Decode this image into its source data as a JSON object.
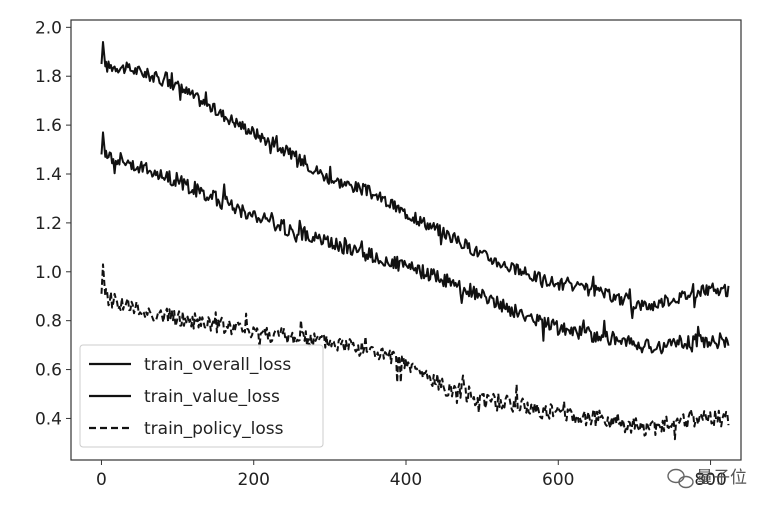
{
  "chart_data": {
    "type": "line",
    "title": "",
    "xlabel": "",
    "ylabel": "",
    "xlim": [
      -40,
      840
    ],
    "ylim": [
      0.23,
      2.03
    ],
    "xticks": [
      0,
      200,
      400,
      600,
      800
    ],
    "xtick_labels": [
      "0",
      "200",
      "400",
      "600",
      "800"
    ],
    "yticks": [
      0.4,
      0.6,
      0.8,
      1.0,
      1.2,
      1.4,
      1.6,
      1.8,
      2.0
    ],
    "ytick_labels": [
      "0.4",
      "0.6",
      "0.8",
      "1.0",
      "1.2",
      "1.4",
      "1.6",
      "1.8",
      "2.0"
    ],
    "grid": false,
    "legend_position": "lower-left",
    "colors": {
      "line": "#111111",
      "axis": "#333333",
      "legend_border": "#cccccc"
    },
    "series": [
      {
        "name": "train_overall_loss",
        "style": "solid",
        "noise": 0.025,
        "x": [
          0,
          2,
          5,
          20,
          50,
          100,
          150,
          200,
          250,
          300,
          350,
          400,
          450,
          500,
          550,
          600,
          650,
          700,
          720,
          750,
          800,
          825
        ],
        "y": [
          1.85,
          1.94,
          1.84,
          1.84,
          1.82,
          1.76,
          1.66,
          1.57,
          1.48,
          1.38,
          1.33,
          1.24,
          1.16,
          1.07,
          1.0,
          0.95,
          0.92,
          0.87,
          0.86,
          0.89,
          0.93,
          0.92
        ]
      },
      {
        "name": "train_value_loss",
        "style": "solid",
        "noise": 0.03,
        "x": [
          0,
          2,
          5,
          20,
          50,
          100,
          150,
          200,
          250,
          300,
          350,
          400,
          450,
          500,
          550,
          600,
          650,
          700,
          720,
          750,
          800,
          825
        ],
        "y": [
          1.48,
          1.57,
          1.47,
          1.47,
          1.43,
          1.37,
          1.3,
          1.23,
          1.17,
          1.12,
          1.07,
          1.02,
          0.97,
          0.9,
          0.83,
          0.77,
          0.74,
          0.71,
          0.69,
          0.71,
          0.72,
          0.7
        ]
      },
      {
        "name": "train_policy_loss",
        "style": "dashed",
        "noise": 0.035,
        "x": [
          0,
          2,
          5,
          20,
          50,
          100,
          150,
          200,
          250,
          300,
          350,
          400,
          450,
          500,
          550,
          600,
          650,
          700,
          720,
          750,
          800,
          825
        ],
        "y": [
          0.91,
          1.03,
          0.9,
          0.88,
          0.84,
          0.81,
          0.78,
          0.76,
          0.73,
          0.71,
          0.68,
          0.62,
          0.53,
          0.48,
          0.45,
          0.42,
          0.4,
          0.37,
          0.36,
          0.38,
          0.4,
          0.4
        ]
      }
    ]
  },
  "watermark": {
    "text": "量子位",
    "icon": "wechat-icon"
  }
}
